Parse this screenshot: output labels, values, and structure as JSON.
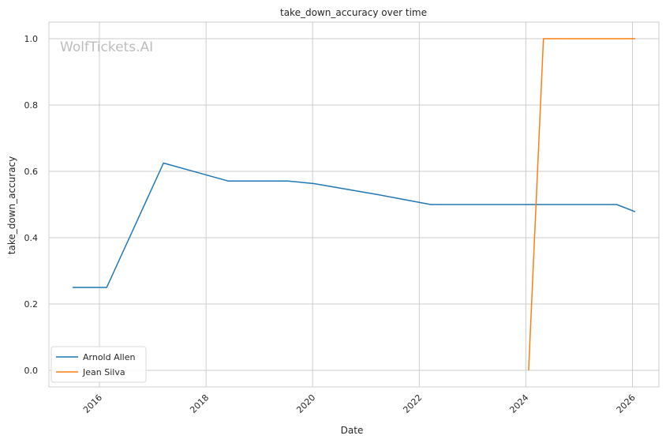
{
  "watermark": "WolfTickets.AI",
  "chart_data": {
    "type": "line",
    "title": "take_down_accuracy over time",
    "xlabel": "Date",
    "ylabel": "take_down_accuracy",
    "x_ticks": [
      "2016",
      "2018",
      "2020",
      "2022",
      "2024",
      "2026"
    ],
    "y_ticks": [
      "0.0",
      "0.2",
      "0.4",
      "0.6",
      "0.8",
      "1.0"
    ],
    "xlim": [
      "2015-01-20",
      "2026-07-01"
    ],
    "ylim": [
      -0.05,
      1.05
    ],
    "grid": true,
    "legend_position": "lower-left",
    "series": [
      {
        "name": "Arnold Allen",
        "color": "#1f77b4",
        "points": [
          [
            "2015-07-01",
            0.25
          ],
          [
            "2016-02-20",
            0.25
          ],
          [
            "2017-03-15",
            0.625
          ],
          [
            "2018-06-01",
            0.571
          ],
          [
            "2019-07-15",
            0.571
          ],
          [
            "2020-01-10",
            0.563
          ],
          [
            "2021-04-01",
            0.529
          ],
          [
            "2022-03-20",
            0.5
          ],
          [
            "2025-09-15",
            0.5
          ],
          [
            "2026-01-20",
            0.478
          ]
        ]
      },
      {
        "name": "Jean Silva",
        "color": "#ff7f0e",
        "points": [
          [
            "2024-01-20",
            0.0
          ],
          [
            "2024-05-01",
            1.0
          ],
          [
            "2026-01-20",
            1.0
          ]
        ]
      }
    ]
  }
}
